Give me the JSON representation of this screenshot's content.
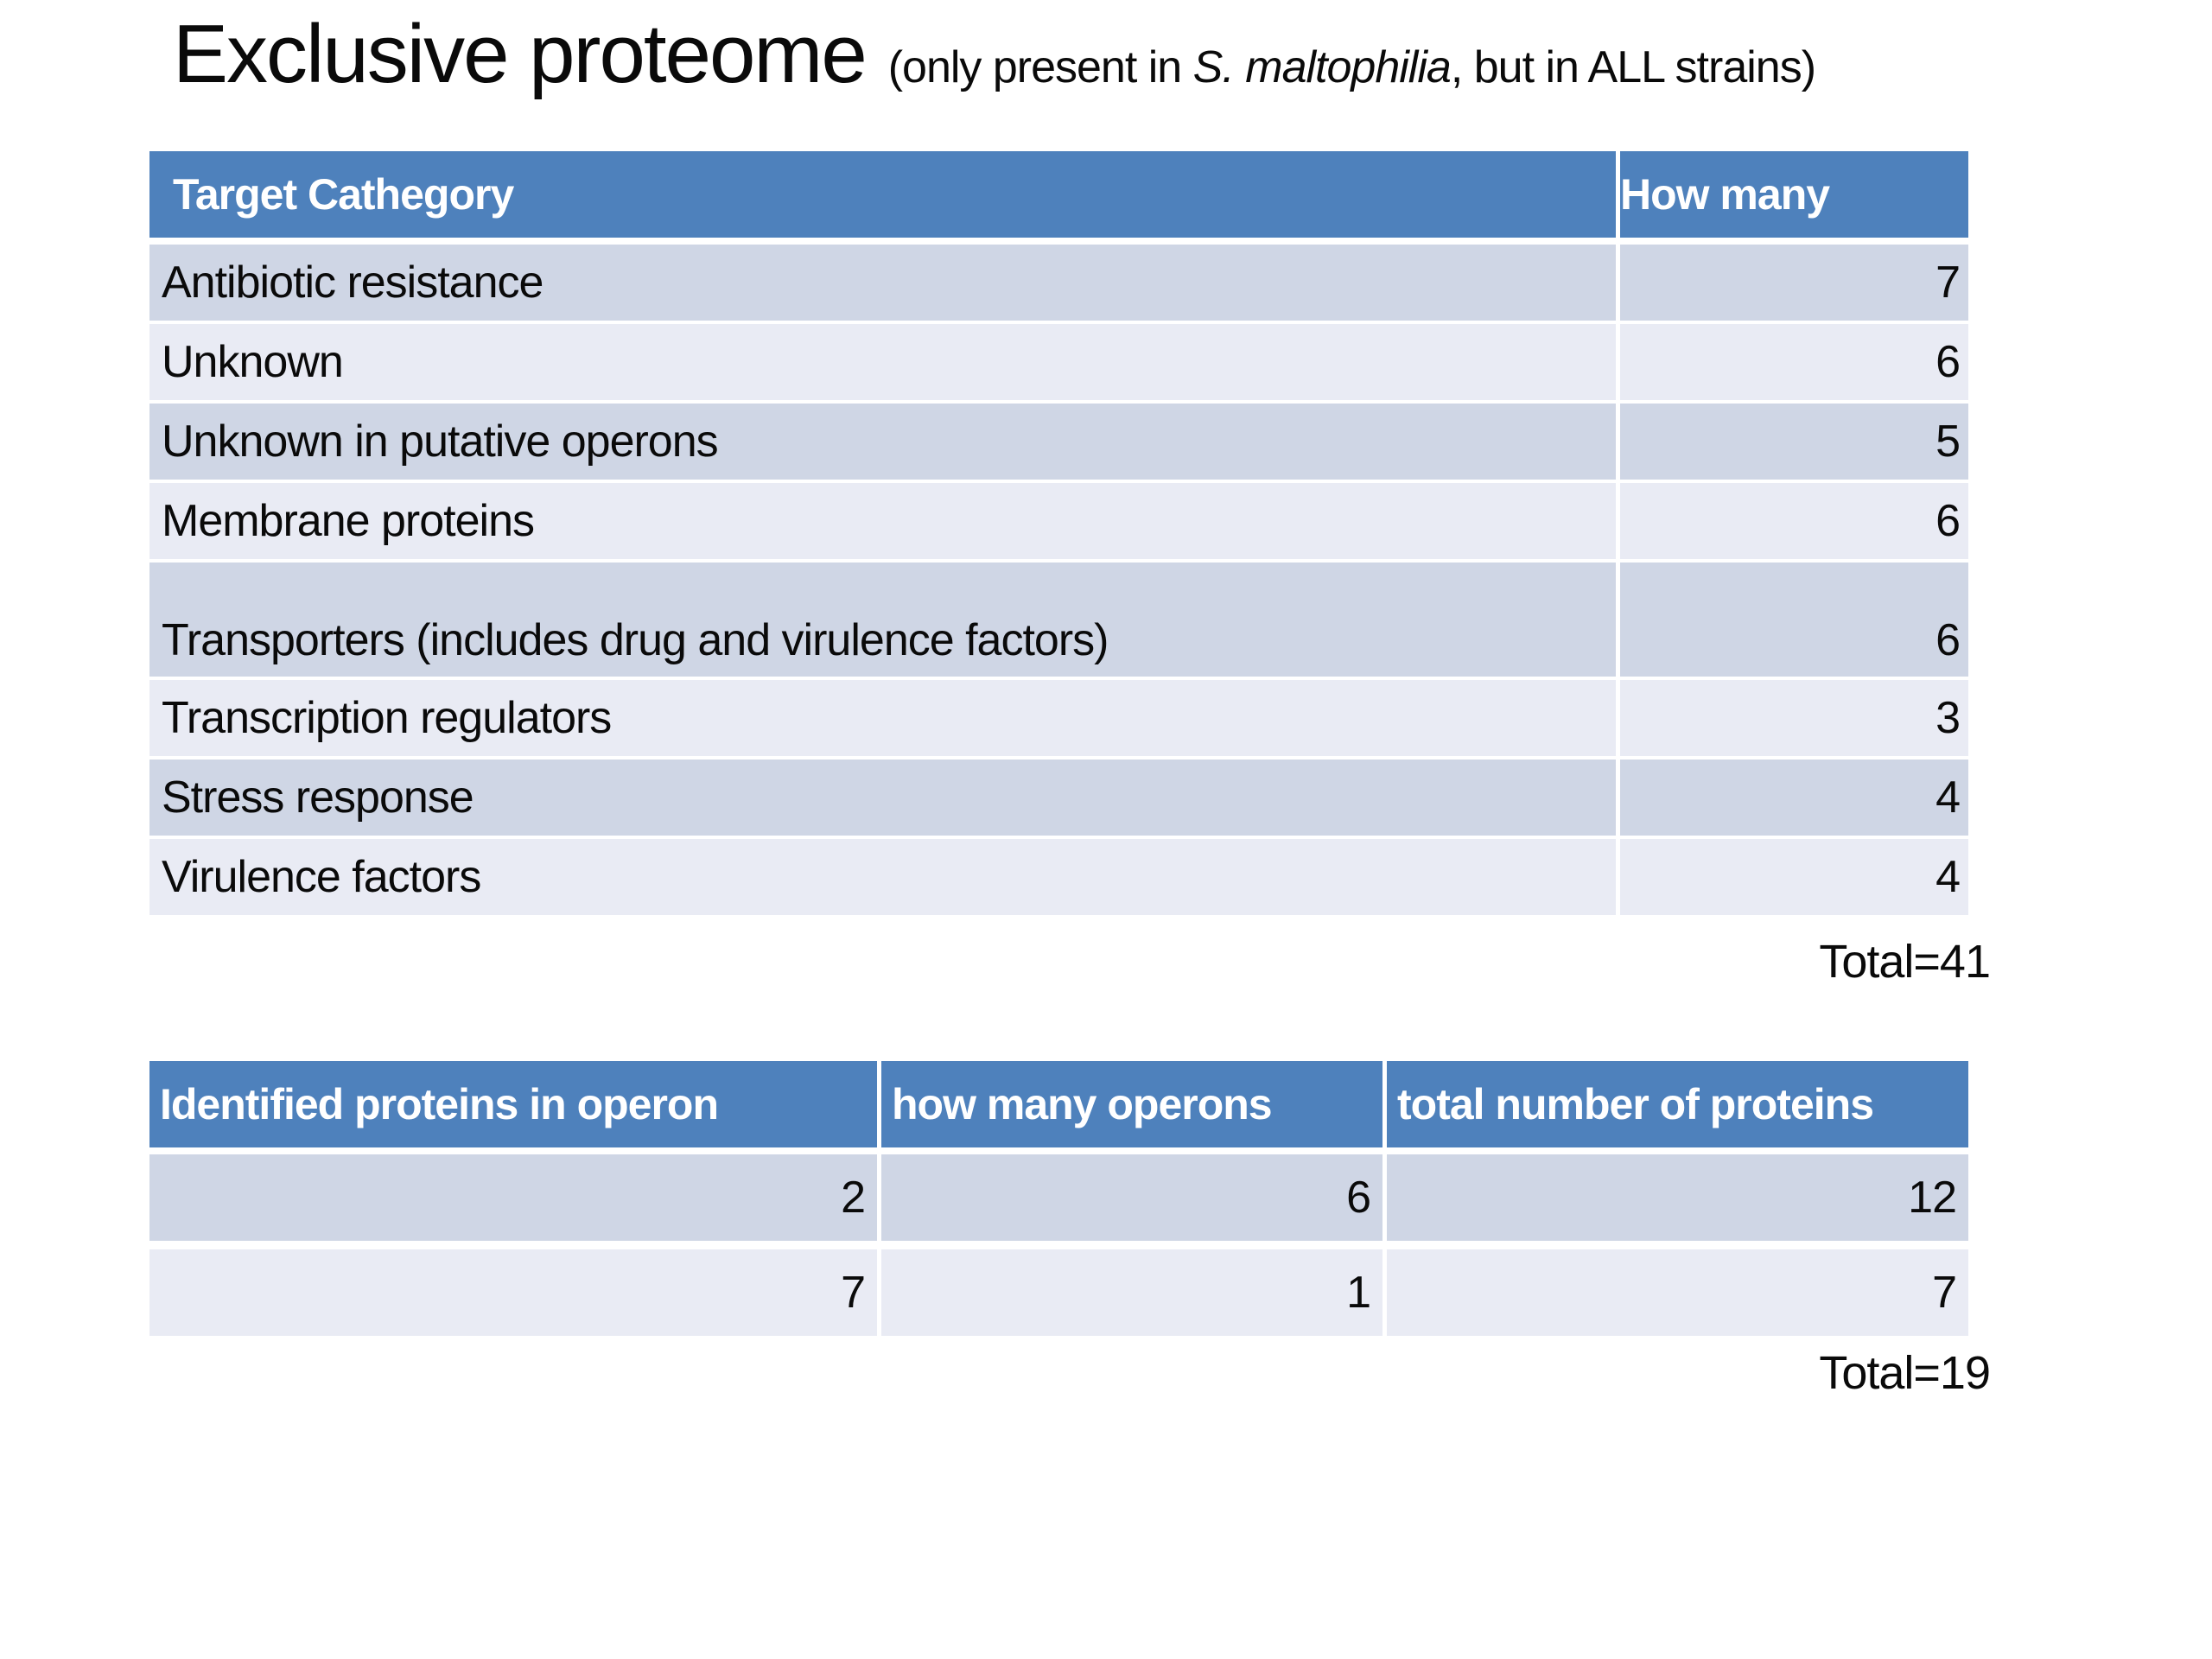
{
  "slide": {
    "title": "Exclusive proteome",
    "subtitle_prefix": "(only present in ",
    "subtitle_species": "S. maltophilia",
    "subtitle_suffix": ", but in ALL strains)"
  },
  "table1": {
    "headers": [
      "Target Cathegory",
      "How many"
    ],
    "rows": [
      {
        "label": "Antibiotic resistance",
        "value": "7"
      },
      {
        "label": "Unknown",
        "value": "6"
      },
      {
        "label": "Unknown in putative operons",
        "value": "5"
      },
      {
        "label": "Membrane proteins",
        "value": "6"
      },
      {
        "label": "Transporters (includes drug and virulence factors)",
        "value": "6"
      },
      {
        "label": "Transcription regulators",
        "value": "3"
      },
      {
        "label": "Stress response",
        "value": "4"
      },
      {
        "label": "Virulence factors",
        "value": "4"
      }
    ],
    "total": "Total=41"
  },
  "table2": {
    "headers": [
      "Identified proteins in operon",
      "how many operons",
      "total number of proteins"
    ],
    "rows": [
      {
        "c1": "2",
        "c2": "6",
        "c3": "12"
      },
      {
        "c1": "7",
        "c2": "1",
        "c3": "7"
      }
    ],
    "total": "Total=19"
  },
  "colors": {
    "header_blue": "#4E81BC",
    "row_dark": "#CFD6E5",
    "row_light": "#E9EBF4",
    "header_text": "#FFFFFF",
    "body_text": "#0A0A0A"
  }
}
